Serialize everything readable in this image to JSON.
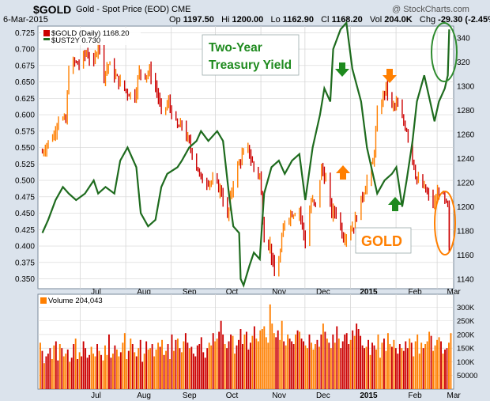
{
  "header": {
    "symbol": "$GOLD",
    "description": "Gold - Spot Price (EOD)  CME",
    "watermark": "@ StockCharts.com",
    "date": "6-Mar-2015",
    "open_label": "Op",
    "open": "1197.50",
    "high_label": "Hi",
    "high": "1200.00",
    "low_label": "Lo",
    "low": "1162.90",
    "close_label": "Cl",
    "close": "1168.20",
    "volume_label": "Vol",
    "volume": "204.0K",
    "change_label": "Chg",
    "change": "-29.30 (-2.45%)"
  },
  "legend": {
    "gold": "$GOLD (Daily) 1168.20",
    "ust2y": "$UST2Y 0.730"
  },
  "annotations": {
    "two_year_line1": "Two-Year",
    "two_year_line2": "Treasury Yield",
    "gold_label": "GOLD"
  },
  "volume_legend": "Volume 204,043",
  "colors": {
    "background": "#dbe3ec",
    "plot_bg": "#ffffff",
    "gold_up": "#ff7f00",
    "gold_down": "#cc0000",
    "yield_line": "#1e6b1e",
    "arrow_orange": "#ff7f00",
    "arrow_green": "#1e8a1e",
    "ellipse_green": "#2e8b2e",
    "ellipse_orange": "#ff7f00",
    "grid": "#d6d6d6"
  },
  "icons": [
    "arrow-up-orange-icon",
    "arrow-down-orange-icon",
    "arrow-down-green-icon",
    "arrow-up-green-icon",
    "ellipse-highlight-icon"
  ],
  "chart_data": [
    {
      "type": "line",
      "title": "$GOLD vs $UST2Y",
      "x_tick_labels": [
        "Jul",
        "Aug",
        "Sep",
        "Oct",
        "Nov",
        "Dec",
        "2015",
        "Feb",
        "Mar"
      ],
      "left_axis_ticks": [
        "0.725",
        "0.700",
        "0.675",
        "0.650",
        "0.625",
        "0.600",
        "0.575",
        "0.550",
        "0.525",
        "0.500",
        "0.475",
        "0.450",
        "0.425",
        "0.400",
        "0.375",
        "0.350"
      ],
      "right_axis_ticks": [
        "340",
        "320",
        "1300",
        "1280",
        "1260",
        "1240",
        "1220",
        "1200",
        "1180",
        "1160",
        "1140"
      ],
      "ylim_left": [
        0.335,
        0.735
      ],
      "ylim_right": [
        1132,
        1350
      ],
      "grid": true,
      "series": [
        {
          "name": "$GOLD (Daily)",
          "axis": "right",
          "style": "ohlc-bars",
          "points": [
            {
              "x": "2014-06-02",
              "y": 1245
            },
            {
              "x": "2014-06-05",
              "y": 1252
            },
            {
              "x": "2014-06-10",
              "y": 1260
            },
            {
              "x": "2014-06-13",
              "y": 1275
            },
            {
              "x": "2014-06-18",
              "y": 1270
            },
            {
              "x": "2014-06-20",
              "y": 1315
            },
            {
              "x": "2014-06-24",
              "y": 1320
            },
            {
              "x": "2014-06-27",
              "y": 1318
            },
            {
              "x": "2014-07-02",
              "y": 1328
            },
            {
              "x": "2014-07-07",
              "y": 1318
            },
            {
              "x": "2014-07-10",
              "y": 1337
            },
            {
              "x": "2014-07-14",
              "y": 1310
            },
            {
              "x": "2014-07-17",
              "y": 1318
            },
            {
              "x": "2014-07-22",
              "y": 1308
            },
            {
              "x": "2014-07-25",
              "y": 1302
            },
            {
              "x": "2014-07-30",
              "y": 1295
            },
            {
              "x": "2014-08-04",
              "y": 1292
            },
            {
              "x": "2014-08-07",
              "y": 1312
            },
            {
              "x": "2014-08-11",
              "y": 1310
            },
            {
              "x": "2014-08-14",
              "y": 1312
            },
            {
              "x": "2014-08-19",
              "y": 1296
            },
            {
              "x": "2014-08-22",
              "y": 1278
            },
            {
              "x": "2014-08-27",
              "y": 1286
            },
            {
              "x": "2014-09-02",
              "y": 1265
            },
            {
              "x": "2014-09-05",
              "y": 1268
            },
            {
              "x": "2014-09-10",
              "y": 1252
            },
            {
              "x": "2014-09-15",
              "y": 1235
            },
            {
              "x": "2014-09-18",
              "y": 1222
            },
            {
              "x": "2014-09-23",
              "y": 1222
            },
            {
              "x": "2014-09-29",
              "y": 1218
            },
            {
              "x": "2014-10-02",
              "y": 1212
            },
            {
              "x": "2014-10-06",
              "y": 1190
            },
            {
              "x": "2014-10-10",
              "y": 1222
            },
            {
              "x": "2014-10-15",
              "y": 1240
            },
            {
              "x": "2014-10-20",
              "y": 1248
            },
            {
              "x": "2014-10-24",
              "y": 1232
            },
            {
              "x": "2014-10-28",
              "y": 1226
            },
            {
              "x": "2014-10-31",
              "y": 1175
            },
            {
              "x": "2014-11-04",
              "y": 1168
            },
            {
              "x": "2014-11-07",
              "y": 1142
            },
            {
              "x": "2014-11-11",
              "y": 1162
            },
            {
              "x": "2014-11-14",
              "y": 1190
            },
            {
              "x": "2014-11-19",
              "y": 1195
            },
            {
              "x": "2014-11-24",
              "y": 1198
            },
            {
              "x": "2014-11-28",
              "y": 1170
            },
            {
              "x": "2014-12-02",
              "y": 1205
            },
            {
              "x": "2014-12-05",
              "y": 1200
            },
            {
              "x": "2014-12-09",
              "y": 1232
            },
            {
              "x": "2014-12-12",
              "y": 1222
            },
            {
              "x": "2014-12-16",
              "y": 1195
            },
            {
              "x": "2014-12-19",
              "y": 1196
            },
            {
              "x": "2014-12-24",
              "y": 1175
            },
            {
              "x": "2014-12-31",
              "y": 1185
            },
            {
              "x": "2015-01-05",
              "y": 1205
            },
            {
              "x": "2015-01-09",
              "y": 1222
            },
            {
              "x": "2015-01-13",
              "y": 1235
            },
            {
              "x": "2015-01-16",
              "y": 1275
            },
            {
              "x": "2015-01-20",
              "y": 1292
            },
            {
              "x": "2015-01-22",
              "y": 1300
            },
            {
              "x": "2015-01-26",
              "y": 1282
            },
            {
              "x": "2015-01-29",
              "y": 1285
            },
            {
              "x": "2015-02-02",
              "y": 1272
            },
            {
              "x": "2015-02-05",
              "y": 1265
            },
            {
              "x": "2015-02-09",
              "y": 1240
            },
            {
              "x": "2015-02-12",
              "y": 1222
            },
            {
              "x": "2015-02-17",
              "y": 1215
            },
            {
              "x": "2015-02-20",
              "y": 1208
            },
            {
              "x": "2015-02-24",
              "y": 1202
            },
            {
              "x": "2015-02-27",
              "y": 1215
            },
            {
              "x": "2015-03-03",
              "y": 1204
            },
            {
              "x": "2015-03-05",
              "y": 1198
            },
            {
              "x": "2015-03-06",
              "y": 1168.2
            }
          ]
        },
        {
          "name": "$UST2Y",
          "axis": "left",
          "style": "line",
          "points": [
            {
              "x": "2014-06-02",
              "y": 0.42
            },
            {
              "x": "2014-06-06",
              "y": 0.44
            },
            {
              "x": "2014-06-11",
              "y": 0.47
            },
            {
              "x": "2014-06-16",
              "y": 0.49
            },
            {
              "x": "2014-06-20",
              "y": 0.48
            },
            {
              "x": "2014-06-25",
              "y": 0.47
            },
            {
              "x": "2014-07-01",
              "y": 0.48
            },
            {
              "x": "2014-07-07",
              "y": 0.5
            },
            {
              "x": "2014-07-10",
              "y": 0.48
            },
            {
              "x": "2014-07-15",
              "y": 0.49
            },
            {
              "x": "2014-07-21",
              "y": 0.48
            },
            {
              "x": "2014-07-25",
              "y": 0.53
            },
            {
              "x": "2014-07-30",
              "y": 0.55
            },
            {
              "x": "2014-08-05",
              "y": 0.52
            },
            {
              "x": "2014-08-08",
              "y": 0.45
            },
            {
              "x": "2014-08-13",
              "y": 0.43
            },
            {
              "x": "2014-08-18",
              "y": 0.44
            },
            {
              "x": "2014-08-22",
              "y": 0.49
            },
            {
              "x": "2014-08-26",
              "y": 0.51
            },
            {
              "x": "2014-09-02",
              "y": 0.52
            },
            {
              "x": "2014-09-05",
              "y": 0.53
            },
            {
              "x": "2014-09-10",
              "y": 0.55
            },
            {
              "x": "2014-09-15",
              "y": 0.56
            },
            {
              "x": "2014-09-18",
              "y": 0.575
            },
            {
              "x": "2014-09-23",
              "y": 0.56
            },
            {
              "x": "2014-09-29",
              "y": 0.575
            },
            {
              "x": "2014-10-03",
              "y": 0.56
            },
            {
              "x": "2014-10-07",
              "y": 0.48
            },
            {
              "x": "2014-10-10",
              "y": 0.43
            },
            {
              "x": "2014-10-14",
              "y": 0.42
            },
            {
              "x": "2014-10-15",
              "y": 0.35
            },
            {
              "x": "2014-10-17",
              "y": 0.34
            },
            {
              "x": "2014-10-21",
              "y": 0.37
            },
            {
              "x": "2014-10-24",
              "y": 0.39
            },
            {
              "x": "2014-10-28",
              "y": 0.38
            },
            {
              "x": "2014-10-31",
              "y": 0.48
            },
            {
              "x": "2014-11-05",
              "y": 0.52
            },
            {
              "x": "2014-11-10",
              "y": 0.53
            },
            {
              "x": "2014-11-14",
              "y": 0.51
            },
            {
              "x": "2014-11-19",
              "y": 0.53
            },
            {
              "x": "2014-11-24",
              "y": 0.54
            },
            {
              "x": "2014-11-28",
              "y": 0.47
            },
            {
              "x": "2014-12-03",
              "y": 0.55
            },
            {
              "x": "2014-12-08",
              "y": 0.6
            },
            {
              "x": "2014-12-11",
              "y": 0.64
            },
            {
              "x": "2014-12-15",
              "y": 0.62
            },
            {
              "x": "2014-12-17",
              "y": 0.7
            },
            {
              "x": "2014-12-22",
              "y": 0.73
            },
            {
              "x": "2014-12-26",
              "y": 0.74
            },
            {
              "x": "2014-12-30",
              "y": 0.67
            },
            {
              "x": "2015-01-05",
              "y": 0.62
            },
            {
              "x": "2015-01-09",
              "y": 0.55
            },
            {
              "x": "2015-01-14",
              "y": 0.5
            },
            {
              "x": "2015-01-16",
              "y": 0.48
            },
            {
              "x": "2015-01-21",
              "y": 0.5
            },
            {
              "x": "2015-01-26",
              "y": 0.51
            },
            {
              "x": "2015-01-29",
              "y": 0.52
            },
            {
              "x": "2015-02-02",
              "y": 0.46
            },
            {
              "x": "2015-02-05",
              "y": 0.5
            },
            {
              "x": "2015-02-09",
              "y": 0.56
            },
            {
              "x": "2015-02-12",
              "y": 0.62
            },
            {
              "x": "2015-02-17",
              "y": 0.66
            },
            {
              "x": "2015-02-20",
              "y": 0.63
            },
            {
              "x": "2015-02-24",
              "y": 0.59
            },
            {
              "x": "2015-02-27",
              "y": 0.62
            },
            {
              "x": "2015-03-03",
              "y": 0.64
            },
            {
              "x": "2015-03-05",
              "y": 0.66
            },
            {
              "x": "2015-03-06",
              "y": 0.73
            }
          ]
        }
      ]
    },
    {
      "type": "bar",
      "title": "Volume",
      "y_tick_labels": [
        "300K",
        "250K",
        "200K",
        "150K",
        "100K",
        "50000"
      ],
      "ylim": [
        0,
        330000
      ],
      "grid": true,
      "series": [
        {
          "name": "Volume",
          "values": [
            170000,
            140000,
            95000,
            120000,
            130000,
            150000,
            110000,
            160000,
            175000,
            105000,
            165000,
            150000,
            120000,
            130000,
            145000,
            100000,
            115000,
            165000,
            185000,
            110000,
            135000,
            120000,
            175000,
            150000,
            115000,
            125000,
            155000,
            130000,
            120000,
            165000,
            140000,
            125000,
            105000,
            160000,
            125000,
            200000,
            115000,
            130000,
            160000,
            145000,
            120000,
            135000,
            170000,
            205000,
            110000,
            140000,
            185000,
            165000,
            135000,
            120000,
            150000,
            180000,
            100000,
            130000,
            175000,
            145000,
            150000,
            165000,
            120000,
            145000,
            170000,
            155000,
            180000,
            125000,
            140000,
            165000,
            110000,
            200000,
            140000,
            180000,
            185000,
            150000,
            135000,
            175000,
            205000,
            170000,
            150000,
            155000,
            130000,
            120000,
            160000,
            165000,
            190000,
            135000,
            115000,
            150000,
            170000,
            160000,
            205000,
            175000,
            185000,
            210000,
            250000,
            200000,
            165000,
            150000,
            175000,
            200000,
            195000,
            130000,
            160000,
            180000,
            220000,
            165000,
            200000,
            210000,
            145000,
            170000,
            195000,
            230000,
            185000,
            175000,
            215000,
            220000,
            230000,
            190000,
            170000,
            310000,
            240000,
            205000,
            190000,
            215000,
            180000,
            250000,
            175000,
            160000,
            200000,
            185000,
            175000,
            165000,
            200000,
            215000,
            210000,
            185000,
            175000,
            160000,
            150000,
            200000,
            170000,
            145000,
            165000,
            180000,
            155000,
            200000,
            240000,
            210000,
            185000,
            170000,
            150000,
            200000,
            170000,
            230000,
            185000,
            150000,
            175000,
            200000,
            205000,
            165000,
            180000,
            215000,
            195000,
            240000,
            220000,
            195000,
            160000,
            150000,
            155000,
            180000,
            125000,
            170000,
            160000,
            145000,
            200000,
            115000,
            170000,
            185000,
            140000,
            205000,
            165000,
            155000,
            180000,
            150000,
            130000,
            165000,
            150000,
            140000,
            175000,
            150000,
            185000,
            170000,
            120000,
            175000,
            200000,
            130000,
            170000,
            150000,
            165000,
            175000,
            210000,
            195000,
            140000,
            160000,
            180000,
            190000,
            175000,
            130000,
            145000,
            150000,
            170000,
            205000
          ]
        }
      ]
    }
  ]
}
